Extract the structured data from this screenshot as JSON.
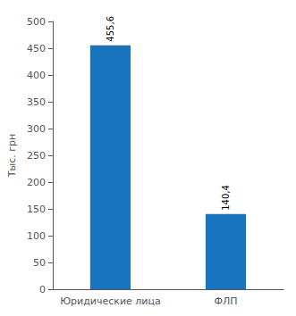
{
  "chart_data": {
    "type": "bar",
    "categories": [
      "Юридические лица",
      "ФЛП"
    ],
    "values": [
      455.6,
      140.4
    ],
    "value_labels": [
      "455,6",
      "140,4"
    ],
    "data_labels": true,
    "color": "#1874BF",
    "ylabel": "Тыс. грн",
    "ylim": [
      0,
      500
    ],
    "yticks": [
      0,
      50,
      100,
      150,
      200,
      250,
      300,
      350,
      400,
      450,
      500
    ],
    "grid": false
  }
}
